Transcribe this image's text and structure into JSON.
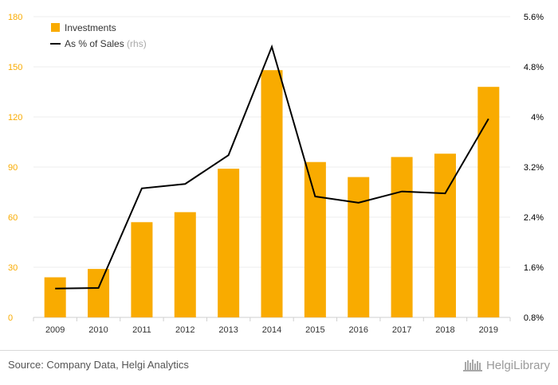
{
  "chart_data": {
    "type": "bar",
    "categories": [
      "2009",
      "2010",
      "2011",
      "2012",
      "2013",
      "2014",
      "2015",
      "2016",
      "2017",
      "2018",
      "2019"
    ],
    "series": [
      {
        "name": "Investments",
        "kind": "bar",
        "axis": "left",
        "color": "#f9ab00",
        "values": [
          24,
          29,
          57,
          63,
          89,
          148,
          93,
          84,
          96,
          98,
          138
        ]
      },
      {
        "name": "As % of Sales",
        "suffix": "(rhs)",
        "kind": "line",
        "axis": "right",
        "color": "#000000",
        "values": [
          1.26,
          1.27,
          2.86,
          2.93,
          3.39,
          5.12,
          2.73,
          2.63,
          2.81,
          2.78,
          3.97
        ]
      }
    ],
    "ylim": [
      0,
      180
    ],
    "y_ticks": [
      "0",
      "30",
      "60",
      "90",
      "120",
      "150",
      "180"
    ],
    "y2lim": [
      0.8,
      5.6
    ],
    "y2_ticks": [
      "0.8%",
      "1.6%",
      "2.4%",
      "3.2%",
      "4%",
      "4.8%",
      "5.6%"
    ],
    "grid": true,
    "legend": "top-left",
    "left_axis_color": "#f9ab00",
    "right_axis_color": "#000000"
  },
  "footer": {
    "source": "Source: Company Data, Helgi Analytics",
    "brand": "HelgiLibrary",
    "brand_icon": "library-logo-icon"
  }
}
